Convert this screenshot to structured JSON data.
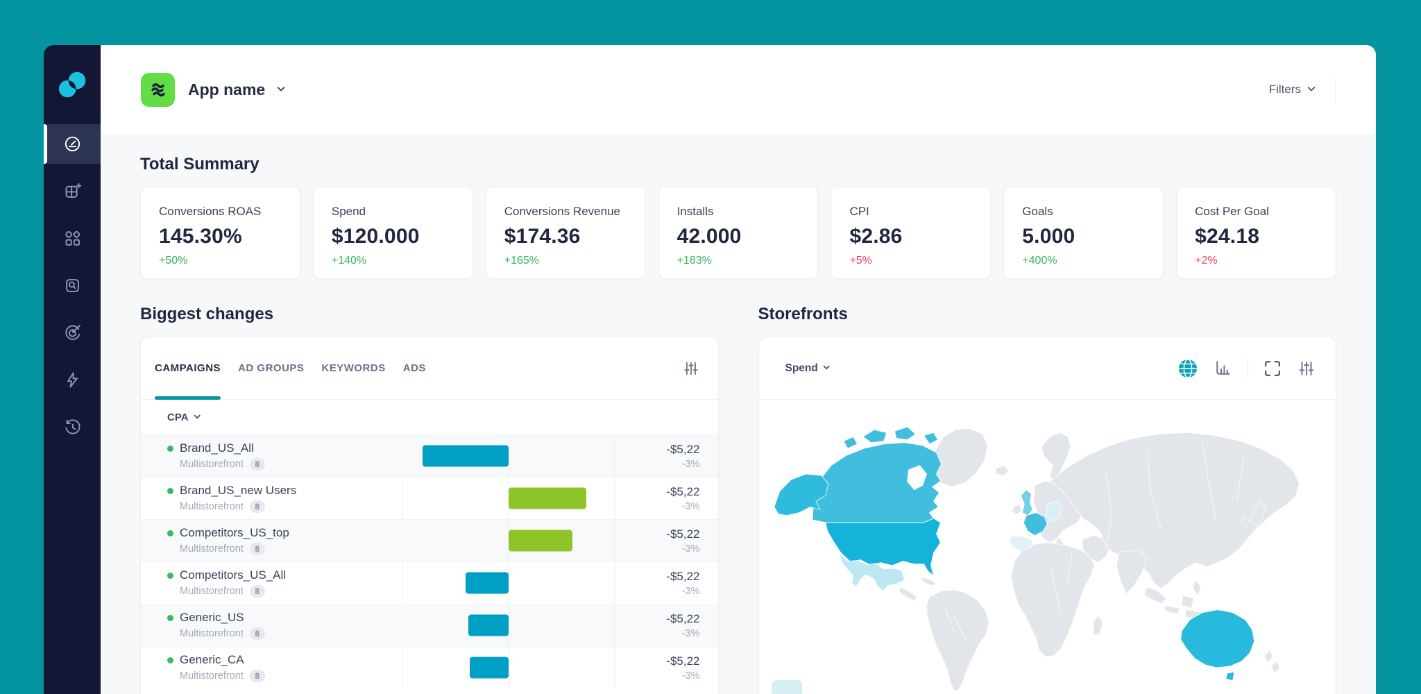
{
  "theme": {
    "frame": "#0394A0",
    "sidebar_bg": "#131635",
    "accent_teal": "#0396A1",
    "bar_teal": "#00A0C4",
    "bar_green": "#8DC529",
    "positive_green": "#35B55F",
    "negative_red": "#F04259",
    "map_base": "#E2E5EA"
  },
  "header": {
    "app_title": "App name",
    "app_icon": "green-waves-app-icon",
    "filters_label": "Filters"
  },
  "sidebar": {
    "logo": "overlapping-circles-logo",
    "items": [
      {
        "name": "dashboard",
        "icon": "gauge-icon",
        "active": true
      },
      {
        "name": "add-widgets",
        "icon": "grid-plus-icon",
        "active": false
      },
      {
        "name": "categories",
        "icon": "shapes-icon",
        "active": false
      },
      {
        "name": "search-audit",
        "icon": "doc-search-icon",
        "active": false
      },
      {
        "name": "goals",
        "icon": "target-icon",
        "active": false
      },
      {
        "name": "automation",
        "icon": "bolt-icon",
        "active": false
      },
      {
        "name": "history",
        "icon": "history-icon",
        "active": false
      }
    ]
  },
  "summary": {
    "title": "Total Summary",
    "cards": [
      {
        "label": "Conversions ROAS",
        "value": "145.30%",
        "delta": "+50%",
        "trend": "positive"
      },
      {
        "label": "Spend",
        "value": "$120.000",
        "delta": "+140%",
        "trend": "positive"
      },
      {
        "label": "Conversions Revenue",
        "value": "$174.36",
        "delta": "+165%",
        "trend": "positive"
      },
      {
        "label": "Installs",
        "value": "42.000",
        "delta": "+183%",
        "trend": "positive"
      },
      {
        "label": "CPI",
        "value": "$2.86",
        "delta": "+5%",
        "trend": "negative"
      },
      {
        "label": "Goals",
        "value": "5.000",
        "delta": "+400%",
        "trend": "positive"
      },
      {
        "label": "Cost Per Goal",
        "value": "$24.18",
        "delta": "+2%",
        "trend": "negative"
      }
    ]
  },
  "biggest_changes": {
    "title": "Biggest changes",
    "tabs": [
      "CAMPAIGNS",
      "AD GROUPS",
      "KEYWORDS",
      "ADS"
    ],
    "active_tab": "CAMPAIGNS",
    "filter_icon": "sliders-icon",
    "metric_selector": "CPA",
    "rows": [
      {
        "name": "Brand_US_All",
        "subtitle": "Multistorefront",
        "badge": "8",
        "value": "-$5,22",
        "pct": "-3%",
        "bar": {
          "direction": "left",
          "color": "teal",
          "length": 124
        }
      },
      {
        "name": "Brand_US_new Users",
        "subtitle": "Multistorefront",
        "badge": "8",
        "value": "-$5,22",
        "pct": "-3%",
        "bar": {
          "direction": "right",
          "color": "green",
          "length": 112
        }
      },
      {
        "name": "Competitors_US_top",
        "subtitle": "Multistorefront",
        "badge": "8",
        "value": "-$5,22",
        "pct": "-3%",
        "bar": {
          "direction": "right",
          "color": "green",
          "length": 92
        }
      },
      {
        "name": "Competitors_US_All",
        "subtitle": "Multistorefront",
        "badge": "8",
        "value": "-$5,22",
        "pct": "-3%",
        "bar": {
          "direction": "left",
          "color": "teal",
          "length": 62
        }
      },
      {
        "name": "Generic_US",
        "subtitle": "Multistorefront",
        "badge": "8",
        "value": "-$5,22",
        "pct": "-3%",
        "bar": {
          "direction": "left",
          "color": "teal",
          "length": 58
        }
      },
      {
        "name": "Generic_CA",
        "subtitle": "Multistorefront",
        "badge": "8",
        "value": "-$5,22",
        "pct": "-3%",
        "bar": {
          "direction": "left",
          "color": "teal",
          "length": 56
        }
      }
    ]
  },
  "storefronts": {
    "title": "Storefronts",
    "metric_selector": "Spend",
    "toolbar": [
      "globe-icon",
      "column-chart-icon",
      "expand-icon",
      "sliders-icon"
    ],
    "map_regions": {
      "canada": "#41BEDD",
      "alaska": "#2FBBDC",
      "usa": "#14B3DA",
      "mexico": "#BDE7F1",
      "uk": "#6FD0E6",
      "france": "#41BEDD",
      "germany": "#D9EFF7",
      "iberia": "#E2F3F8",
      "australia": "#27BADC"
    }
  }
}
